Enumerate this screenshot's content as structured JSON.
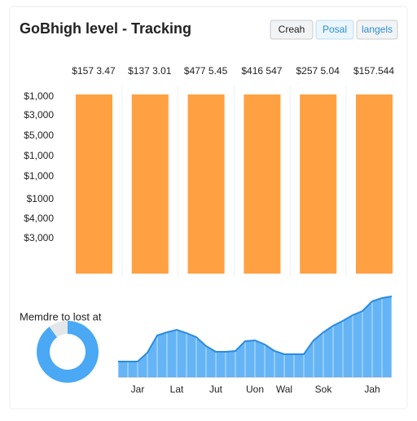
{
  "header": {
    "title": "GoBhigh level - Tracking",
    "buttons": [
      "Creah",
      "Posal",
      "langels"
    ]
  },
  "bar_panel": {
    "column_labels": [
      "$157 3.47",
      "$137 3.01",
      "$477 5.45",
      "$416 547",
      "$257 5.04",
      "$157.544"
    ],
    "row_labels": [
      "$1,000",
      "$3,000",
      "$5,000",
      "$1,000",
      "$1,000",
      "$1000",
      "$4,000",
      "$3,000"
    ]
  },
  "chart_data": [
    {
      "type": "pie",
      "title": "Memdre to lost at",
      "values": [
        90,
        10
      ],
      "colors": [
        "#4aa8f5",
        "#e4e7ea"
      ]
    },
    {
      "type": "area",
      "color": "#4aa8f5",
      "ylim": [
        0,
        100
      ],
      "categories": [
        null,
        null,
        "Jar",
        null,
        null,
        null,
        "Lat",
        null,
        null,
        null,
        "Jut",
        null,
        null,
        null,
        "Uon",
        null,
        null,
        "Wal",
        null,
        null,
        null,
        "Sok",
        null,
        null,
        null,
        null,
        "Jah",
        null,
        null
      ],
      "values": [
        19,
        19,
        19,
        30,
        51,
        55,
        58,
        54,
        49,
        38,
        31,
        31,
        32,
        44,
        45,
        40,
        32,
        28,
        28,
        28,
        45,
        55,
        63,
        69,
        76,
        81,
        93,
        97,
        99
      ]
    }
  ]
}
